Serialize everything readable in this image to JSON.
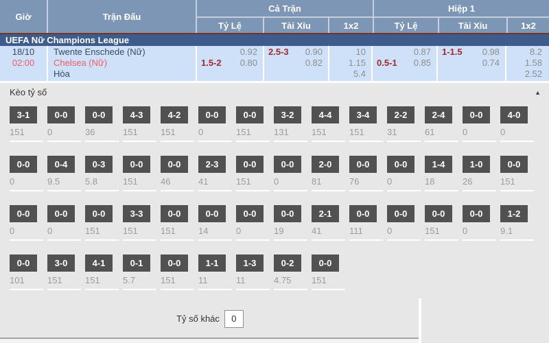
{
  "header": {
    "time_label": "Giờ",
    "match_label": "Trận Đấu",
    "groups": [
      {
        "label": "Cả Trận",
        "subs": [
          "Tỷ Lệ",
          "Tài Xỉu",
          "1x2"
        ]
      },
      {
        "label": "Hiệp 1",
        "subs": [
          "Tỷ Lệ",
          "Tài Xỉu",
          "1x2"
        ]
      }
    ]
  },
  "league": {
    "name": "UEFA Nữ Champions League"
  },
  "match": {
    "date": "18/10",
    "time": "02:00",
    "home": "Twente Enschede (Nữ)",
    "away": "Chelsea (Nữ)",
    "draw_label": "Hòa",
    "full": {
      "handicap": {
        "line": "1.5-2",
        "home_odds": "0.92",
        "away_odds": "0.80"
      },
      "total": {
        "line": "2.5-3",
        "over_odds": "0.90",
        "under_odds": "0.82"
      },
      "x12": [
        "10",
        "1.15",
        "5.4"
      ]
    },
    "half1": {
      "handicap": {
        "line": "0.5-1",
        "home_odds": "0.87",
        "away_odds": "0.85"
      },
      "total": {
        "line": "1-1.5",
        "over_odds": "0.98",
        "under_odds": "0.74"
      },
      "x12": [
        "8.2",
        "1.58",
        "2.52"
      ]
    }
  },
  "score_section": {
    "title": "Kèo tỷ số",
    "collapse_icon": "▲",
    "rows": [
      [
        {
          "score": "3-1",
          "odds": "151"
        },
        {
          "score": "0-0",
          "odds": "0"
        },
        {
          "score": "0-0",
          "odds": "36"
        },
        {
          "score": "4-3",
          "odds": "151"
        },
        {
          "score": "4-2",
          "odds": "151"
        },
        {
          "score": "0-0",
          "odds": "0"
        },
        {
          "score": "0-0",
          "odds": "151"
        },
        {
          "score": "3-2",
          "odds": "131"
        },
        {
          "score": "4-4",
          "odds": "151"
        },
        {
          "score": "3-4",
          "odds": "151"
        },
        {
          "score": "2-2",
          "odds": "31"
        },
        {
          "score": "2-4",
          "odds": "61"
        },
        {
          "score": "0-0",
          "odds": "0"
        },
        {
          "score": "4-0",
          "odds": "0"
        }
      ],
      [
        {
          "score": "0-0",
          "odds": "0"
        },
        {
          "score": "0-4",
          "odds": "9.5"
        },
        {
          "score": "0-3",
          "odds": "5.8"
        },
        {
          "score": "0-0",
          "odds": "151"
        },
        {
          "score": "0-0",
          "odds": "46"
        },
        {
          "score": "2-3",
          "odds": "41"
        },
        {
          "score": "0-0",
          "odds": "151"
        },
        {
          "score": "0-0",
          "odds": "0"
        },
        {
          "score": "2-0",
          "odds": "81"
        },
        {
          "score": "0-0",
          "odds": "76"
        },
        {
          "score": "0-0",
          "odds": "0"
        },
        {
          "score": "1-4",
          "odds": "18"
        },
        {
          "score": "1-0",
          "odds": "26"
        },
        {
          "score": "0-0",
          "odds": "151"
        }
      ],
      [
        {
          "score": "0-0",
          "odds": "0"
        },
        {
          "score": "0-0",
          "odds": "0"
        },
        {
          "score": "0-0",
          "odds": "151"
        },
        {
          "score": "3-3",
          "odds": "151"
        },
        {
          "score": "0-0",
          "odds": "151"
        },
        {
          "score": "0-0",
          "odds": "14"
        },
        {
          "score": "0-0",
          "odds": "0"
        },
        {
          "score": "0-0",
          "odds": "19"
        },
        {
          "score": "2-1",
          "odds": "41"
        },
        {
          "score": "0-0",
          "odds": "111"
        },
        {
          "score": "0-0",
          "odds": "0"
        },
        {
          "score": "0-0",
          "odds": "151"
        },
        {
          "score": "0-0",
          "odds": "0"
        },
        {
          "score": "1-2",
          "odds": "9.1"
        }
      ],
      [
        {
          "score": "0-0",
          "odds": "101"
        },
        {
          "score": "3-0",
          "odds": "151"
        },
        {
          "score": "4-1",
          "odds": "151"
        },
        {
          "score": "0-1",
          "odds": "5.7"
        },
        {
          "score": "0-0",
          "odds": "151"
        },
        {
          "score": "1-1",
          "odds": "11"
        },
        {
          "score": "1-3",
          "odds": "11"
        },
        {
          "score": "0-2",
          "odds": "4.75"
        },
        {
          "score": "0-0",
          "odds": "151"
        }
      ]
    ],
    "other_label": "Tỷ số khác",
    "other_value": "0"
  },
  "colors": {
    "header_bg": "#7E96B6",
    "league_bg": "#3E5C8B",
    "league_accent": "#79331F",
    "row_bg": "#CEE1F8",
    "accent_red": "#F25A64",
    "handicap_red": "#A3282F",
    "chip_bg": "#515151",
    "section_bg": "#E7E7E7"
  }
}
